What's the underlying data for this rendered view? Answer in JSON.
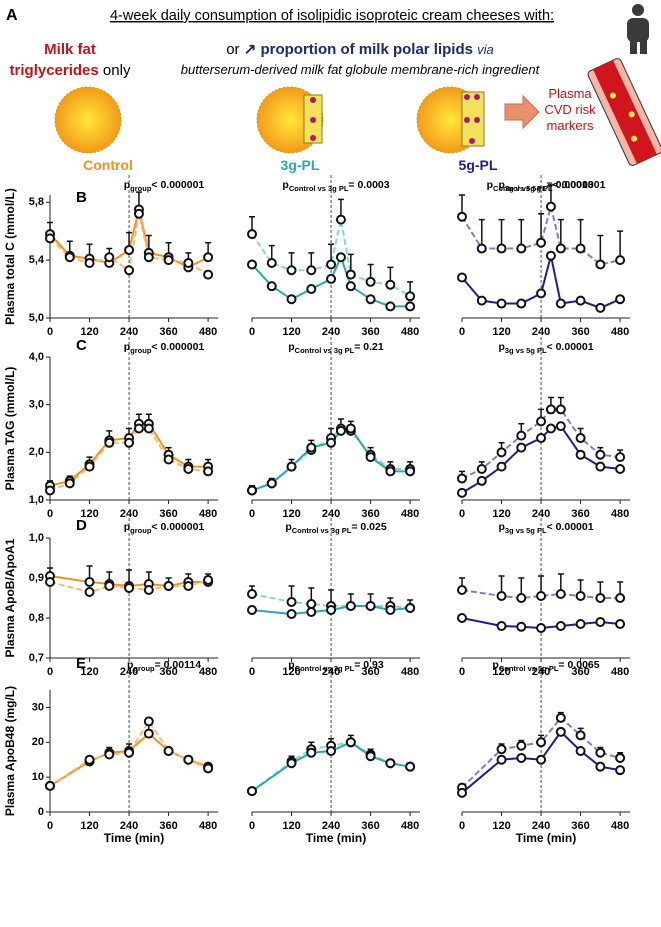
{
  "header": {
    "letter": "A",
    "title": "4-week daily consumption of isolipidic isoproteic cream cheeses with:",
    "milk_fat": "Milk fat",
    "triglycerides": "triglycerides",
    "only": "only",
    "or": "or",
    "arrow": "↗",
    "polar": "proportion of milk polar lipids",
    "via": "via",
    "ingredient": "butterserum-derived milk fat globule membrane-rich ingredient",
    "plasma": [
      "Plasma",
      "CVD risk",
      "markers"
    ],
    "groups": [
      {
        "label": "Control",
        "color": "#f0921e"
      },
      {
        "label": "3g-PL",
        "color": "#2aa7b1"
      },
      {
        "label": "5g-PL",
        "color": "#1c1f8c"
      }
    ]
  },
  "chart_data": [
    {
      "type": "line",
      "panel": "B",
      "ylabel": "Plasma total C (mmol/L)",
      "annotation": {
        "p": "p",
        "sub": "group",
        "text": "< 0.000001"
      },
      "x": [
        0,
        60,
        120,
        180,
        240,
        270,
        300,
        360,
        420,
        480
      ],
      "xlim": [
        0,
        510
      ],
      "xticks": [
        0,
        120,
        240,
        360,
        480
      ],
      "vline": 240,
      "ylim": [
        5.0,
        5.85
      ],
      "yticks": [
        {
          "value": 5.0,
          "label": "5,0"
        },
        {
          "value": 5.4,
          "label": "5,4"
        },
        {
          "value": 5.8,
          "label": "5,8"
        }
      ],
      "series": [
        {
          "color": "#f0921e",
          "dashed": false,
          "values": [
            5.58,
            5.43,
            5.41,
            5.38,
            5.47,
            5.75,
            5.45,
            5.42,
            5.35,
            5.42
          ],
          "errors": [
            0.08,
            0.1,
            0.1,
            0.1,
            0.12,
            0.12,
            0.12,
            0.1,
            0.1,
            0.1
          ]
        },
        {
          "color": "#f5b978",
          "dashed": true,
          "values": [
            5.55,
            5.42,
            5.38,
            5.42,
            5.33,
            5.72,
            5.42,
            5.4,
            5.38,
            5.3
          ]
        }
      ]
    },
    {
      "type": "line",
      "annotation": {
        "p": "p",
        "sub": "Control vs 3g PL",
        "text": "= 0.0003"
      },
      "x": [
        0,
        60,
        120,
        180,
        240,
        270,
        300,
        360,
        420,
        480
      ],
      "xlim": [
        0,
        510
      ],
      "xticks": [
        0,
        120,
        240,
        360,
        480
      ],
      "vline": 240,
      "ylim": [
        5.0,
        5.85
      ],
      "series": [
        {
          "color": "#8fd2d5",
          "dashed": true,
          "values": [
            5.58,
            5.38,
            5.33,
            5.33,
            5.37,
            5.68,
            5.3,
            5.25,
            5.23,
            5.15
          ],
          "errors": [
            0.12,
            0.12,
            0.12,
            0.12,
            0.14,
            0.14,
            0.14,
            0.12,
            0.12,
            0.1
          ]
        },
        {
          "color": "#2aa7b1",
          "dashed": false,
          "values": [
            5.37,
            5.22,
            5.13,
            5.2,
            5.27,
            5.42,
            5.22,
            5.13,
            5.08,
            5.08
          ]
        }
      ]
    },
    {
      "type": "line",
      "annotation": {
        "p": "p",
        "sub": "3g vs 5g PL",
        "text": "= 0.00013"
      },
      "x": [
        0,
        60,
        120,
        180,
        240,
        270,
        300,
        360,
        420,
        480
      ],
      "xlim": [
        0,
        510
      ],
      "xticks": [
        0,
        120,
        240,
        360,
        480
      ],
      "vline": 240,
      "ylim": [
        5.0,
        5.85
      ],
      "series": [
        {
          "color": "#7c80c6",
          "dashed": true,
          "values": [
            5.7,
            5.48,
            5.48,
            5.48,
            5.52,
            5.77,
            5.48,
            5.48,
            5.37,
            5.4
          ],
          "errors": [
            0.15,
            0.2,
            0.2,
            0.2,
            0.2,
            0.15,
            0.2,
            0.2,
            0.2,
            0.2
          ]
        },
        {
          "color": "#1c1f8c",
          "dashed": false,
          "values": [
            5.28,
            5.12,
            5.1,
            5.1,
            5.17,
            5.43,
            5.1,
            5.12,
            5.07,
            5.13
          ]
        }
      ]
    },
    {
      "type": "line",
      "panel": "C",
      "ylabel": "Plasma TAG (mmol/L)",
      "annotation": {
        "p": "p",
        "sub": "group",
        "text": "< 0.000001"
      },
      "x": [
        0,
        60,
        120,
        180,
        240,
        270,
        300,
        360,
        420,
        480
      ],
      "xlim": [
        0,
        510
      ],
      "xticks": [
        0,
        120,
        240,
        360,
        480
      ],
      "vline": 240,
      "ylim": [
        1.0,
        4.0
      ],
      "yticks": [
        {
          "value": 1.0,
          "label": "1,0"
        },
        {
          "value": 2.0,
          "label": "2,0"
        },
        {
          "value": 3.0,
          "label": "3,0"
        },
        {
          "value": 4.0,
          "label": "4,0"
        }
      ],
      "series": [
        {
          "color": "#f0921e",
          "dashed": false,
          "values": [
            1.3,
            1.4,
            1.75,
            2.25,
            2.3,
            2.6,
            2.6,
            1.95,
            1.7,
            1.7
          ],
          "errors": [
            0.1,
            0.1,
            0.15,
            0.2,
            0.2,
            0.2,
            0.2,
            0.15,
            0.15,
            0.15
          ]
        },
        {
          "color": "#f5b978",
          "dashed": true,
          "values": [
            1.2,
            1.35,
            1.7,
            2.2,
            2.2,
            2.5,
            2.5,
            1.85,
            1.65,
            1.6
          ]
        }
      ]
    },
    {
      "type": "line",
      "annotation": {
        "p": "p",
        "sub": "Control vs 3g PL",
        "text": "= 0.21"
      },
      "x": [
        0,
        60,
        120,
        180,
        240,
        270,
        300,
        360,
        420,
        480
      ],
      "xlim": [
        0,
        510
      ],
      "xticks": [
        0,
        120,
        240,
        360,
        480
      ],
      "vline": 240,
      "ylim": [
        1.0,
        4.0
      ],
      "series": [
        {
          "color": "#8fd2d5",
          "dashed": true,
          "values": [
            1.2,
            1.35,
            1.7,
            2.05,
            2.3,
            2.5,
            2.45,
            1.95,
            1.65,
            1.65
          ],
          "errors": [
            0.1,
            0.1,
            0.15,
            0.2,
            0.2,
            0.2,
            0.2,
            0.15,
            0.15,
            0.15
          ]
        },
        {
          "color": "#2aa7b1",
          "dashed": false,
          "values": [
            1.2,
            1.35,
            1.7,
            2.1,
            2.2,
            2.45,
            2.5,
            1.9,
            1.6,
            1.6
          ]
        }
      ]
    },
    {
      "type": "line",
      "annotation": {
        "p": "p",
        "sub": "3g vs 5g PL",
        "text": "< 0.00001"
      },
      "x": [
        0,
        60,
        120,
        180,
        240,
        270,
        300,
        360,
        420,
        480
      ],
      "xlim": [
        0,
        510
      ],
      "xticks": [
        0,
        120,
        240,
        360,
        480
      ],
      "vline": 240,
      "ylim": [
        1.0,
        4.0
      ],
      "series": [
        {
          "color": "#7c80c6",
          "dashed": true,
          "values": [
            1.45,
            1.65,
            2.0,
            2.35,
            2.65,
            2.9,
            2.9,
            2.3,
            1.95,
            1.9
          ],
          "errors": [
            0.15,
            0.15,
            0.2,
            0.25,
            0.25,
            0.25,
            0.25,
            0.2,
            0.15,
            0.15
          ]
        },
        {
          "color": "#1c1f8c",
          "dashed": false,
          "values": [
            1.15,
            1.4,
            1.7,
            2.1,
            2.3,
            2.5,
            2.55,
            1.95,
            1.7,
            1.65
          ]
        }
      ]
    },
    {
      "type": "line",
      "panel": "D",
      "ylabel": "Plasma ApoB/ApoA1",
      "annotation": {
        "p": "p",
        "sub": "group",
        "text": "< 0.000001"
      },
      "x": [
        0,
        120,
        180,
        240,
        300,
        360,
        420,
        480
      ],
      "xlim": [
        0,
        510
      ],
      "xticks": [
        0,
        120,
        240,
        360,
        480
      ],
      "vline": 240,
      "ylim": [
        0.7,
        1.0
      ],
      "yticks": [
        {
          "value": 0.7,
          "label": "0,7"
        },
        {
          "value": 0.8,
          "label": "0,8"
        },
        {
          "value": 0.9,
          "label": "0,9"
        },
        {
          "value": 1.0,
          "label": "1,0"
        }
      ],
      "series": [
        {
          "color": "#f0921e",
          "dashed": false,
          "values": [
            0.905,
            0.89,
            0.885,
            0.88,
            0.885,
            0.88,
            0.89,
            0.89
          ],
          "errors": [
            0.02,
            0.04,
            0.03,
            0.04,
            0.03,
            0.02,
            0.02,
            0.02
          ]
        },
        {
          "color": "#f5b978",
          "dashed": true,
          "values": [
            0.89,
            0.865,
            0.88,
            0.875,
            0.87,
            0.88,
            0.88,
            0.895
          ]
        }
      ]
    },
    {
      "type": "line",
      "annotation": {
        "p": "p",
        "sub": "Control vs 3g PL",
        "text": "= 0.025"
      },
      "x": [
        0,
        120,
        180,
        240,
        300,
        360,
        420,
        480
      ],
      "xlim": [
        0,
        510
      ],
      "xticks": [
        0,
        120,
        240,
        360,
        480
      ],
      "vline": 240,
      "ylim": [
        0.7,
        1.0
      ],
      "series": [
        {
          "color": "#8fd2d5",
          "dashed": true,
          "values": [
            0.86,
            0.84,
            0.835,
            0.83,
            0.83,
            0.83,
            0.83,
            0.825
          ],
          "errors": [
            0.02,
            0.04,
            0.04,
            0.04,
            0.03,
            0.03,
            0.02,
            0.02
          ]
        },
        {
          "color": "#2aa7b1",
          "dashed": false,
          "values": [
            0.82,
            0.81,
            0.815,
            0.82,
            0.83,
            0.83,
            0.82,
            0.825
          ]
        }
      ]
    },
    {
      "type": "line",
      "annotation": {
        "p": "p",
        "sub": "3g vs 5g PL",
        "text": "< 0.00001"
      },
      "x": [
        0,
        120,
        180,
        240,
        300,
        360,
        420,
        480
      ],
      "xlim": [
        0,
        510
      ],
      "xticks": [
        0,
        120,
        240,
        360,
        480
      ],
      "vline": 240,
      "ylim": [
        0.7,
        1.0
      ],
      "series": [
        {
          "color": "#7c80c6",
          "dashed": true,
          "values": [
            0.87,
            0.855,
            0.85,
            0.855,
            0.86,
            0.855,
            0.85,
            0.85
          ],
          "errors": [
            0.03,
            0.05,
            0.05,
            0.05,
            0.05,
            0.04,
            0.04,
            0.04
          ]
        },
        {
          "color": "#1c1f8c",
          "dashed": false,
          "values": [
            0.8,
            0.78,
            0.778,
            0.775,
            0.78,
            0.785,
            0.79,
            0.785
          ]
        }
      ]
    },
    {
      "type": "line",
      "panel": "E",
      "ylabel": "Plasma ApoB48 (mg/L)",
      "xlabel": "Time (min)",
      "annotation": {
        "p": "p",
        "sub": "group",
        "text": "= 0.00114"
      },
      "x": [
        0,
        120,
        180,
        240,
        300,
        360,
        420,
        480
      ],
      "xlim": [
        0,
        510
      ],
      "xticks": [
        0,
        120,
        240,
        360,
        480
      ],
      "vline": 240,
      "ylim": [
        0,
        35
      ],
      "yticks": [
        0,
        10,
        20,
        30
      ],
      "series": [
        {
          "color": "#f0921e",
          "dashed": false,
          "values": [
            7.5,
            14.5,
            17,
            17.5,
            22.5,
            17.5,
            15,
            13
          ],
          "errors": [
            0.5,
            1.5,
            1.5,
            2,
            2.5,
            1,
            1,
            1
          ]
        },
        {
          "color": "#f5b978",
          "dashed": true,
          "values": [
            7.5,
            15,
            16.5,
            17,
            26,
            17.5,
            15,
            12.5
          ]
        }
      ]
    },
    {
      "type": "line",
      "xlabel": "Time (min)",
      "annotation": {
        "p": "p",
        "sub": "Control vs 3g PL",
        "text": "= 0.93"
      },
      "x": [
        0,
        120,
        180,
        240,
        300,
        360,
        420,
        480
      ],
      "xlim": [
        0,
        510
      ],
      "xticks": [
        0,
        120,
        240,
        360,
        480
      ],
      "vline": 240,
      "ylim": [
        0,
        35
      ],
      "series": [
        {
          "color": "#8fd2d5",
          "dashed": true,
          "values": [
            6,
            14.5,
            18,
            19,
            20,
            16.5,
            14,
            13
          ],
          "errors": [
            0.5,
            1.5,
            2,
            2,
            2,
            1.5,
            1,
            1
          ]
        },
        {
          "color": "#2aa7b1",
          "dashed": false,
          "values": [
            6,
            14,
            17,
            17.5,
            20,
            16,
            14,
            13
          ]
        }
      ]
    },
    {
      "type": "line",
      "xlabel": "Time (min)",
      "annotation": {
        "p": "p",
        "sub": "Control vs 5g PL",
        "text": "= 0.0065"
      },
      "x": [
        0,
        120,
        180,
        240,
        300,
        360,
        420,
        480
      ],
      "xlim": [
        0,
        510
      ],
      "xticks": [
        0,
        120,
        240,
        360,
        480
      ],
      "vline": 240,
      "ylim": [
        0,
        35
      ],
      "series": [
        {
          "color": "#7c80c6",
          "dashed": true,
          "values": [
            7,
            18,
            19,
            20,
            27,
            22,
            17,
            15.5
          ],
          "errors": [
            0.5,
            1.5,
            1.5,
            2,
            1.5,
            2,
            1.5,
            1.5
          ]
        },
        {
          "color": "#1c1f8c",
          "dashed": false,
          "values": [
            5.5,
            15,
            15.5,
            15,
            23,
            17.5,
            13,
            12
          ]
        }
      ]
    }
  ],
  "row_annotations": {
    "B3": {
      "p": "p",
      "sub": "Control vs 5g PL",
      "text": "< 0.000001"
    }
  }
}
